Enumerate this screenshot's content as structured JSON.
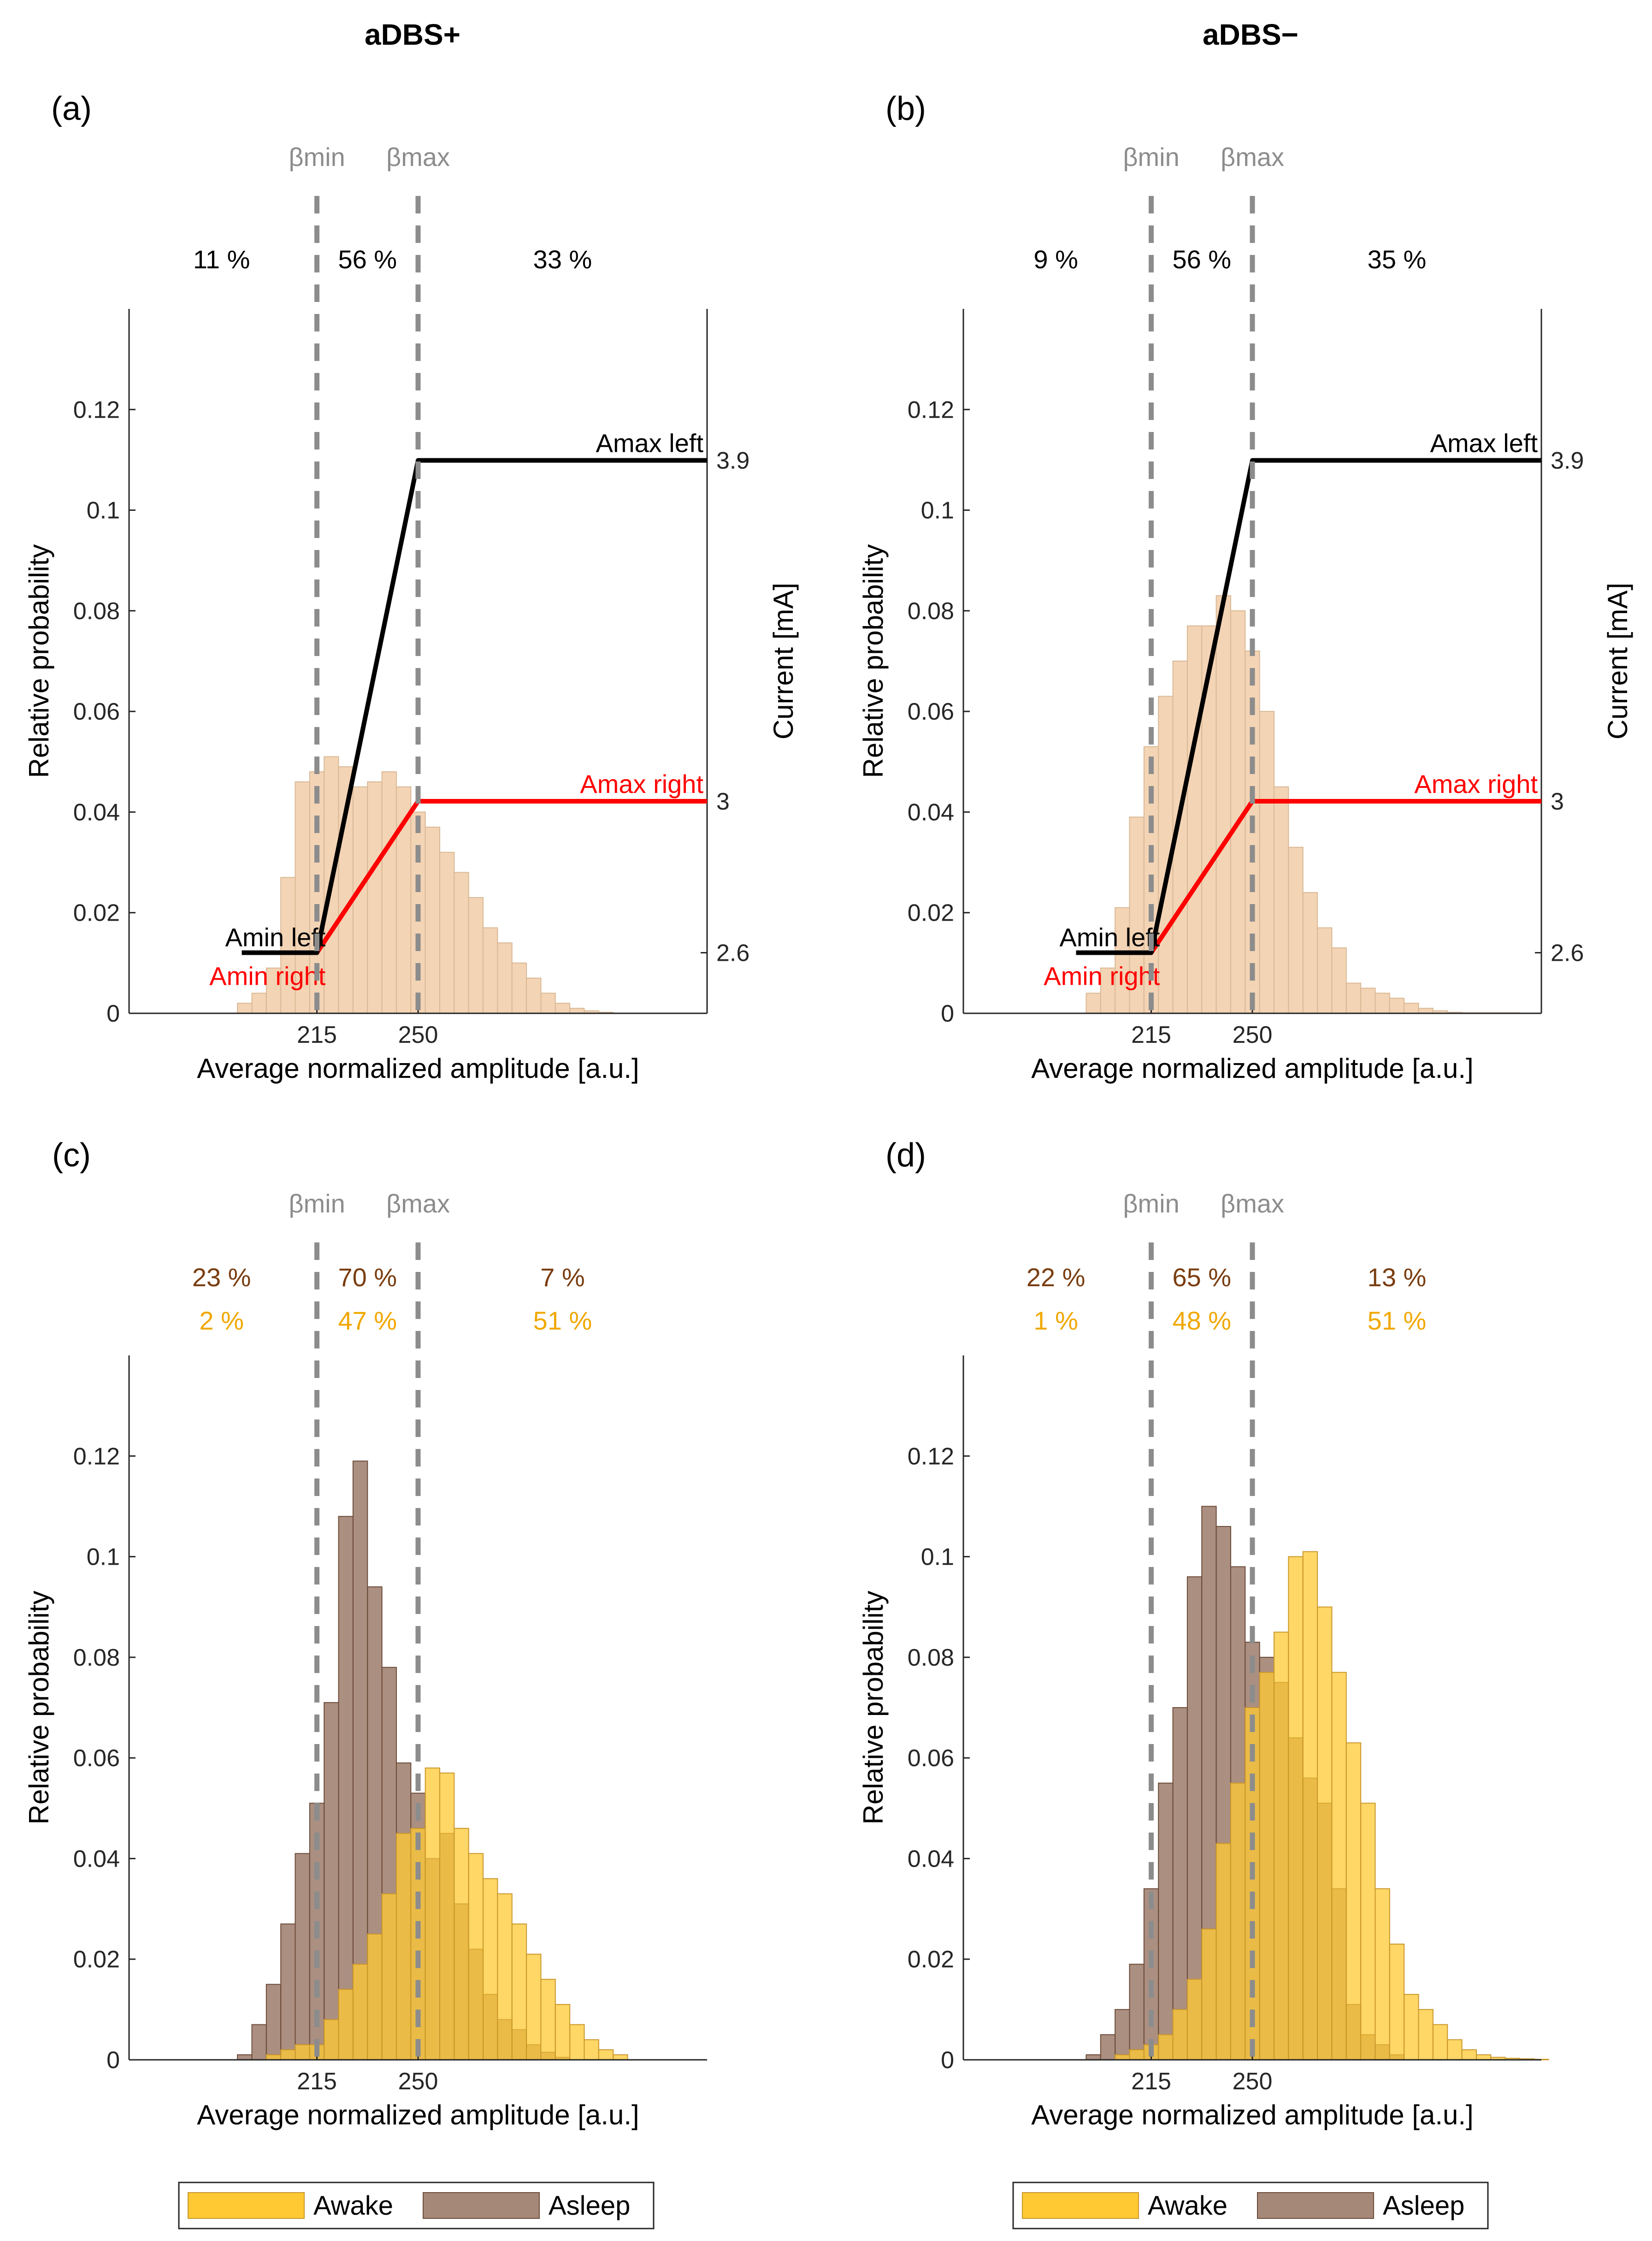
{
  "column_titles": [
    "aDBS+",
    "aDBS−"
  ],
  "beta_labels": {
    "min": "βmin",
    "max": "βmax"
  },
  "legend": {
    "awake": "Awake",
    "asleep": "Asleep"
  },
  "colors": {
    "awake": "#FFC933",
    "asleep": "#8F6A55",
    "overlap": "#A8641B",
    "histogram_a": "#F3D4B5",
    "amax_left_line": "#000000",
    "amax_right_line": "#FF0000",
    "threshold_line": "#8C8C8C",
    "asleep_percent_text": "#7A3D10",
    "awake_percent_text": "#F0A800"
  },
  "chart_data": [
    {
      "id": "panel-a",
      "type": "bar",
      "label": "(a)",
      "xlabel": "Average normalized amplitude [a.u.]",
      "ylabel": "Relative probability",
      "ylabel_right": "Current [mA]",
      "xlim": [
        150,
        350
      ],
      "ylim": [
        0,
        0.14
      ],
      "yticks": [
        "0",
        "0.02",
        "0.04",
        "0.06",
        "0.08",
        "0.1",
        "0.12"
      ],
      "xticks": [
        "215",
        "250"
      ],
      "thresholds": [
        215,
        250
      ],
      "region_percentages": [
        "11 %",
        "56 %",
        "33 %"
      ],
      "bin_width": 5,
      "bin_start": 187.5,
      "histogram": {
        "values": [
          0.002,
          0.004,
          0.009,
          0.027,
          0.046,
          0.048,
          0.051,
          0.049,
          0.045,
          0.046,
          0.048,
          0.045,
          0.04,
          0.037,
          0.032,
          0.028,
          0.023,
          0.017,
          0.014,
          0.01,
          0.007,
          0.004,
          0.002,
          0.001,
          0.0005,
          0.0002
        ]
      },
      "current_axis": {
        "ylim": [
          2.44,
          4.3
        ],
        "ticks": [
          "2.6",
          "3",
          "3.9"
        ]
      },
      "current_lines": [
        {
          "name": "left",
          "points": [
            [
              189,
              2.6
            ],
            [
              215,
              2.6
            ],
            [
              250,
              3.9
            ],
            [
              350,
              3.9
            ]
          ],
          "label_min": "Amin left",
          "label_max": "Amax left"
        },
        {
          "name": "right",
          "points": [
            [
              189,
              2.6
            ],
            [
              215,
              2.6
            ],
            [
              250,
              3.0
            ],
            [
              350,
              3.0
            ]
          ],
          "label_min": "Amin right",
          "label_max": "Amax right"
        }
      ]
    },
    {
      "id": "panel-b",
      "type": "bar",
      "label": "(b)",
      "xlabel": "Average normalized amplitude [a.u.]",
      "ylabel": "Relative probability",
      "ylabel_right": "Current [mA]",
      "xlim": [
        150,
        350
      ],
      "ylim": [
        0,
        0.14
      ],
      "yticks": [
        "0",
        "0.02",
        "0.04",
        "0.06",
        "0.08",
        "0.1",
        "0.12"
      ],
      "xticks": [
        "215",
        "250"
      ],
      "thresholds": [
        215,
        250
      ],
      "region_percentages": [
        "9 %",
        "56 %",
        "35 %"
      ],
      "bin_width": 5,
      "bin_start": 192.5,
      "histogram": {
        "values": [
          0.004,
          0.009,
          0.021,
          0.039,
          0.053,
          0.063,
          0.07,
          0.077,
          0.077,
          0.083,
          0.08,
          0.072,
          0.06,
          0.045,
          0.033,
          0.024,
          0.017,
          0.013,
          0.006,
          0.005,
          0.004,
          0.003,
          0.002,
          0.001,
          0.0005,
          0.0002,
          0.0001,
          0.0001,
          0.0001,
          0.0001
        ]
      },
      "current_axis": {
        "ylim": [
          2.44,
          4.3
        ],
        "ticks": [
          "2.6",
          "3",
          "3.9"
        ]
      },
      "current_lines": [
        {
          "name": "left",
          "points": [
            [
              189,
              2.6
            ],
            [
              215,
              2.6
            ],
            [
              250,
              3.9
            ],
            [
              350,
              3.9
            ]
          ],
          "label_min": "Amin left",
          "label_max": "Amax left"
        },
        {
          "name": "right",
          "points": [
            [
              189,
              2.6
            ],
            [
              215,
              2.6
            ],
            [
              250,
              3.0
            ],
            [
              350,
              3.0
            ]
          ],
          "label_min": "Amin right",
          "label_max": "Amax right"
        }
      ]
    },
    {
      "id": "panel-c",
      "type": "bar",
      "label": "(c)",
      "xlabel": "Average normalized amplitude [a.u.]",
      "ylabel": "Relative probability",
      "xlim": [
        150,
        350
      ],
      "ylim": [
        0,
        0.14
      ],
      "yticks": [
        "0",
        "0.02",
        "0.04",
        "0.06",
        "0.08",
        "0.1",
        "0.12"
      ],
      "xticks": [
        "215",
        "250"
      ],
      "thresholds": [
        215,
        250
      ],
      "region_percentages_asleep": [
        "23 %",
        "70 %",
        "7 %"
      ],
      "region_percentages_awake": [
        "2 %",
        "47 %",
        "51 %"
      ],
      "bin_width": 5,
      "series": [
        {
          "name": "Asleep",
          "bin_start": 187.5,
          "values": [
            0.001,
            0.007,
            0.015,
            0.027,
            0.041,
            0.051,
            0.071,
            0.108,
            0.119,
            0.094,
            0.078,
            0.059,
            0.053,
            0.04,
            0.045,
            0.031,
            0.022,
            0.013,
            0.008,
            0.006,
            0.003,
            0.0015,
            0.0005
          ]
        },
        {
          "name": "Awake",
          "bin_start": 197.5,
          "values": [
            0.001,
            0.002,
            0.003,
            0.003,
            0.008,
            0.014,
            0.019,
            0.025,
            0.033,
            0.045,
            0.046,
            0.058,
            0.057,
            0.046,
            0.041,
            0.036,
            0.033,
            0.027,
            0.021,
            0.016,
            0.011,
            0.007,
            0.004,
            0.002,
            0.001
          ]
        }
      ]
    },
    {
      "id": "panel-d",
      "type": "bar",
      "label": "(d)",
      "xlabel": "Average normalized amplitude [a.u.]",
      "ylabel": "Relative probability",
      "xlim": [
        150,
        350
      ],
      "ylim": [
        0,
        0.14
      ],
      "yticks": [
        "0",
        "0.02",
        "0.04",
        "0.06",
        "0.08",
        "0.1",
        "0.12"
      ],
      "xticks": [
        "215",
        "250"
      ],
      "thresholds": [
        215,
        250
      ],
      "region_percentages_asleep": [
        "22 %",
        "65 %",
        "13 %"
      ],
      "region_percentages_awake": [
        "1 %",
        "48 %",
        "51 %"
      ],
      "bin_width": 5,
      "series": [
        {
          "name": "Asleep",
          "bin_start": 192.5,
          "values": [
            0.001,
            0.005,
            0.01,
            0.019,
            0.034,
            0.055,
            0.07,
            0.096,
            0.11,
            0.106,
            0.098,
            0.083,
            0.08,
            0.075,
            0.064,
            0.056,
            0.051,
            0.034,
            0.011,
            0.005,
            0.003,
            0.001
          ]
        },
        {
          "name": "Awake",
          "bin_start": 202.5,
          "values": [
            0.001,
            0.002,
            0.003,
            0.005,
            0.01,
            0.016,
            0.026,
            0.043,
            0.055,
            0.07,
            0.077,
            0.085,
            0.1,
            0.101,
            0.09,
            0.077,
            0.063,
            0.051,
            0.034,
            0.023,
            0.013,
            0.01,
            0.007,
            0.004,
            0.002,
            0.001,
            0.0005,
            0.0003,
            0.0002,
            0.0001
          ]
        }
      ]
    }
  ]
}
